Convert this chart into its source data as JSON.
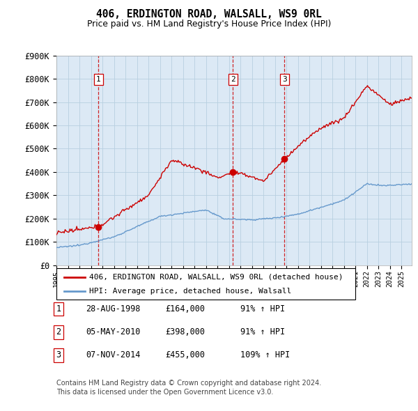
{
  "title": "406, ERDINGTON ROAD, WALSALL, WS9 0RL",
  "subtitle": "Price paid vs. HM Land Registry's House Price Index (HPI)",
  "ylabel_ticks": [
    "£0",
    "£100K",
    "£200K",
    "£300K",
    "£400K",
    "£500K",
    "£600K",
    "£700K",
    "£800K",
    "£900K"
  ],
  "ylim": [
    0,
    900000
  ],
  "xlim_start": 1995.0,
  "xlim_end": 2025.9,
  "legend_line1": "406, ERDINGTON ROAD, WALSALL, WS9 0RL (detached house)",
  "legend_line2": "HPI: Average price, detached house, Walsall",
  "line1_color": "#cc0000",
  "line2_color": "#6699cc",
  "chart_bg": "#dce9f5",
  "transaction_color": "#cc0000",
  "dashed_color": "#cc0000",
  "transactions": [
    {
      "num": 1,
      "date": "28-AUG-1998",
      "price": 164000,
      "pct": "91%",
      "year": 1998.66
    },
    {
      "num": 2,
      "date": "05-MAY-2010",
      "price": 398000,
      "pct": "91%",
      "year": 2010.34
    },
    {
      "num": 3,
      "date": "07-NOV-2014",
      "price": 455000,
      "pct": "109%",
      "year": 2014.84
    }
  ],
  "footnote1": "Contains HM Land Registry data © Crown copyright and database right 2024.",
  "footnote2": "This data is licensed under the Open Government Licence v3.0.",
  "background_color": "#ffffff",
  "grid_color": "#b8cfe0"
}
